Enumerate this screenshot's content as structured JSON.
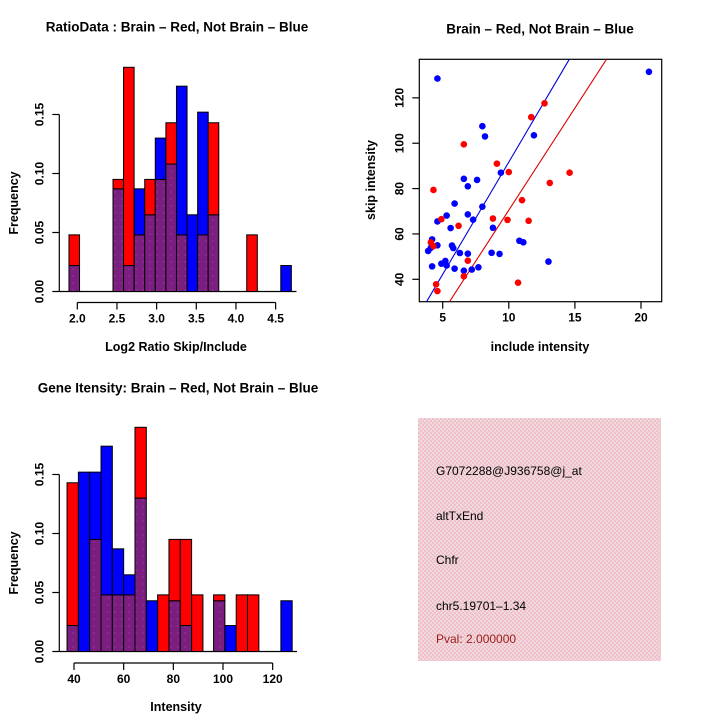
{
  "colors": {
    "brain_red": "#FF0000",
    "not_brain_blue": "#0000FF",
    "overlap_purple": "#7A1F80",
    "overlap_speckle": "#AD35A0",
    "blue_line": "#0000DD",
    "red_line": "#DD0000",
    "pval_dark_red": "#9B1B1B",
    "info_panel_pink": "#F2CAD4",
    "axis_black": "#000000"
  },
  "chart_data": [
    {
      "type": "histogram",
      "id": "ratio-histogram",
      "title": "RatioData : Brain – Red, Not Brain – Blue",
      "xlabel": "Log2 Ratio Skip/Include",
      "ylabel": "Frequency",
      "legend": {
        "red": "Brain",
        "blue": "Not Brain"
      },
      "xlim": [
        1.76,
        4.77
      ],
      "ylim": [
        0,
        0.19
      ],
      "x_ticks": [
        {
          "v": 2.0,
          "label": "2.0"
        },
        {
          "v": 2.5,
          "label": "2.5"
        },
        {
          "v": 3.0,
          "label": "3.0"
        },
        {
          "v": 3.5,
          "label": "3.5"
        },
        {
          "v": 4.0,
          "label": "4.0"
        },
        {
          "v": 4.5,
          "label": "4.5"
        }
      ],
      "y_ticks": [
        {
          "v": 0.0,
          "label": "0.00"
        },
        {
          "v": 0.05,
          "label": "0.05"
        },
        {
          "v": 0.1,
          "label": "0.10"
        },
        {
          "v": 0.15,
          "label": "0.15"
        }
      ],
      "bin_width": 0.1333,
      "bins_note": "each bin = [left_edge, red_height, blue_height]; overlap drawn purple",
      "bins": [
        [
          1.895,
          0.048,
          0.022
        ],
        [
          2.45,
          0.095,
          0.087
        ],
        [
          2.583,
          0.19,
          0.022
        ],
        [
          2.717,
          0.048,
          0.087
        ],
        [
          2.85,
          0.095,
          0.065
        ],
        [
          2.983,
          0.095,
          0.13
        ],
        [
          3.117,
          0.143,
          0.108
        ],
        [
          3.25,
          0.048,
          0.174
        ],
        [
          3.383,
          0.0,
          0.065
        ],
        [
          3.517,
          0.048,
          0.152
        ],
        [
          3.65,
          0.143,
          0.065
        ],
        [
          4.136,
          0.048,
          0.0
        ],
        [
          4.565,
          0.0,
          0.022
        ]
      ]
    },
    {
      "type": "scatter",
      "id": "intensity-scatter",
      "title": "Brain – Red, Not Brain – Blue",
      "xlabel": "include intensity",
      "ylabel": "skip intensity",
      "xlim": [
        3.2,
        21.6
      ],
      "ylim": [
        30.1,
        137.0
      ],
      "x_ticks": [
        {
          "v": 5,
          "label": "5"
        },
        {
          "v": 10,
          "label": "10"
        },
        {
          "v": 15,
          "label": "15"
        },
        {
          "v": 20,
          "label": "20"
        }
      ],
      "y_ticks": [
        {
          "v": 40,
          "label": "40"
        },
        {
          "v": 60,
          "label": "60"
        },
        {
          "v": 80,
          "label": "80"
        },
        {
          "v": 100,
          "label": "100"
        },
        {
          "v": 120,
          "label": "120"
        }
      ],
      "red_points": [
        [
          4.3,
          79.4
        ],
        [
          6.6,
          99.5
        ],
        [
          9.1,
          91.0
        ],
        [
          10.0,
          87.3
        ],
        [
          11.7,
          111.5
        ],
        [
          12.7,
          117.6
        ],
        [
          13.1,
          82.5
        ],
        [
          14.6,
          87.0
        ],
        [
          11.0,
          74.9
        ],
        [
          8.8,
          66.8
        ],
        [
          9.9,
          66.2
        ],
        [
          11.5,
          65.8
        ],
        [
          6.2,
          63.6
        ],
        [
          4.9,
          66.5
        ],
        [
          4.1,
          56.3
        ],
        [
          4.3,
          54.6
        ],
        [
          6.9,
          48.2
        ],
        [
          6.6,
          41.3
        ],
        [
          4.5,
          37.8
        ],
        [
          10.7,
          38.5
        ],
        [
          4.6,
          34.8
        ]
      ],
      "blue_points": [
        [
          4.6,
          128.5
        ],
        [
          20.6,
          131.5
        ],
        [
          8.0,
          107.5
        ],
        [
          8.2,
          103.0
        ],
        [
          11.9,
          103.5
        ],
        [
          9.4,
          87.0
        ],
        [
          6.6,
          84.3
        ],
        [
          7.6,
          83.8
        ],
        [
          6.9,
          81.0
        ],
        [
          5.9,
          73.4
        ],
        [
          8.0,
          72.0
        ],
        [
          5.3,
          68.1
        ],
        [
          6.9,
          68.6
        ],
        [
          7.3,
          66.3
        ],
        [
          4.6,
          65.5
        ],
        [
          5.6,
          62.6
        ],
        [
          8.8,
          62.7
        ],
        [
          4.2,
          57.6
        ],
        [
          10.8,
          57.0
        ],
        [
          11.1,
          56.3
        ],
        [
          4.6,
          55.0
        ],
        [
          5.7,
          54.9
        ],
        [
          5.8,
          53.8
        ],
        [
          4.1,
          53.9
        ],
        [
          3.9,
          52.5
        ],
        [
          6.3,
          51.6
        ],
        [
          6.9,
          51.3
        ],
        [
          8.7,
          51.7
        ],
        [
          9.3,
          51.2
        ],
        [
          5.2,
          48.1
        ],
        [
          4.9,
          46.9
        ],
        [
          5.3,
          46.1
        ],
        [
          4.2,
          45.7
        ],
        [
          5.9,
          44.7
        ],
        [
          6.6,
          43.8
        ],
        [
          7.2,
          44.3
        ],
        [
          7.7,
          45.3
        ],
        [
          13.0,
          47.8
        ]
      ],
      "lines": [
        {
          "name": "blue-fit-line",
          "color": "#0000DD",
          "slope": 9.9,
          "intercept": -7.3
        },
        {
          "name": "red-fit-line",
          "color": "#DD0000",
          "slope": 9.0,
          "intercept": -19.5
        }
      ]
    },
    {
      "type": "histogram",
      "id": "gene-intensity-histogram",
      "title": "Gene Itensity: Brain – Red, Not Brain – Blue",
      "xlabel": "Intensity",
      "ylabel": "Frequency",
      "legend": {
        "red": "Brain",
        "blue": "Not Brain"
      },
      "xlim": [
        34,
        129
      ],
      "ylim": [
        0,
        0.19
      ],
      "x_ticks": [
        {
          "v": 40,
          "label": "40"
        },
        {
          "v": 60,
          "label": "60"
        },
        {
          "v": 80,
          "label": "80"
        },
        {
          "v": 100,
          "label": "100"
        },
        {
          "v": 120,
          "label": "120"
        }
      ],
      "y_ticks": [
        {
          "v": 0.0,
          "label": "0.00"
        },
        {
          "v": 0.05,
          "label": "0.05"
        },
        {
          "v": 0.1,
          "label": "0.10"
        },
        {
          "v": 0.15,
          "label": "0.15"
        }
      ],
      "bin_width": 4.56,
      "bins": [
        [
          37.2,
          0.143,
          0.022
        ],
        [
          41.76,
          0.0,
          0.152
        ],
        [
          46.32,
          0.095,
          0.152
        ],
        [
          50.88,
          0.048,
          0.174
        ],
        [
          55.44,
          0.048,
          0.087
        ],
        [
          60.0,
          0.048,
          0.065
        ],
        [
          64.56,
          0.19,
          0.13
        ],
        [
          69.12,
          0.0,
          0.043
        ],
        [
          73.68,
          0.048,
          0.0
        ],
        [
          78.24,
          0.095,
          0.043
        ],
        [
          82.8,
          0.095,
          0.022
        ],
        [
          87.36,
          0.048,
          0.0
        ],
        [
          96.2,
          0.048,
          0.043
        ],
        [
          100.76,
          0.0,
          0.022
        ],
        [
          105.32,
          0.048,
          0.0
        ],
        [
          109.88,
          0.048,
          0.0
        ],
        [
          123.3,
          0.0,
          0.043
        ]
      ]
    }
  ],
  "info_panel": {
    "probe_id": "G7072288@J936758@j_at",
    "event_type": "altTxEnd",
    "gene_name": "Chfr",
    "locus": "chr5.19701–1.34",
    "pval_text": "Pval: 2.000000"
  }
}
